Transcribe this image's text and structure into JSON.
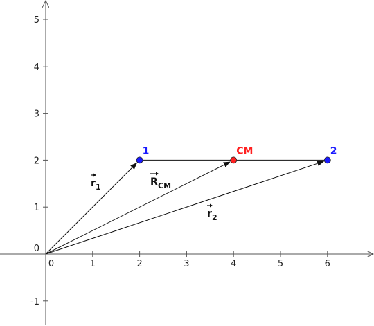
{
  "colors": {
    "background": "#ffffff",
    "axis": "#555555",
    "vector": "#111111",
    "point_1": "#1a1aff",
    "point_2": "#1a1aff",
    "point_cm": "#ff2020"
  },
  "axes": {
    "x_ticks": [
      "0",
      "1",
      "2",
      "3",
      "4",
      "5",
      "6"
    ],
    "y_ticks": [
      "-1",
      "0",
      "1",
      "2",
      "3",
      "4",
      "5"
    ],
    "xlim": [
      -1,
      7
    ],
    "ylim": [
      -1.5,
      5.4
    ]
  },
  "points": [
    {
      "id": "p1",
      "label": "1",
      "x": 2,
      "y": 2,
      "color": "#1a1aff"
    },
    {
      "id": "cm",
      "label": "CM",
      "x": 4,
      "y": 2,
      "color": "#ff2020"
    },
    {
      "id": "p2",
      "label": "2",
      "x": 6,
      "y": 2,
      "color": "#1a1aff"
    }
  ],
  "vectors": [
    {
      "id": "r1",
      "symbol": "r",
      "subscript": "1",
      "from": [
        0,
        0
      ],
      "to": [
        2,
        2
      ]
    },
    {
      "id": "rcm",
      "symbol": "R",
      "subscript": "CM",
      "from": [
        0,
        0
      ],
      "to": [
        4,
        2
      ]
    },
    {
      "id": "r2",
      "symbol": "r",
      "subscript": "2",
      "from": [
        0,
        0
      ],
      "to": [
        6,
        2
      ]
    }
  ],
  "segment": {
    "from": [
      2,
      2
    ],
    "to": [
      6,
      2
    ]
  }
}
